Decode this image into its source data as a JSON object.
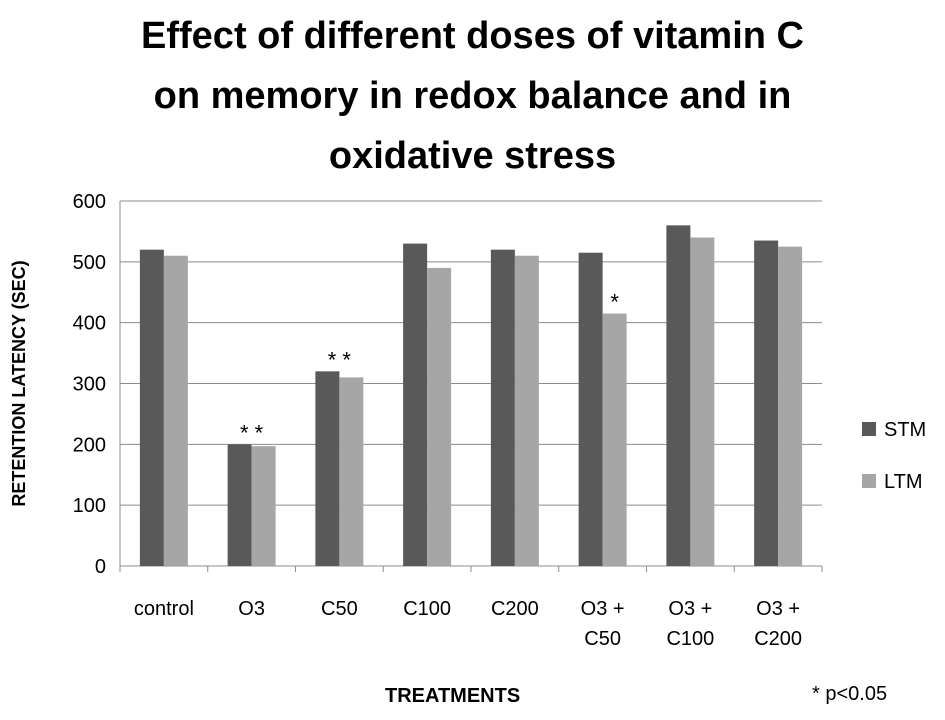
{
  "chart_data": {
    "type": "bar",
    "title_lines": [
      "Effect of different doses of vitamin C",
      "on memory in redox balance and in",
      "oxidative stress"
    ],
    "xlabel": "TREATMENTS",
    "ylabel": "RETENTION LATENCY (SEC)",
    "ylim": [
      0,
      600
    ],
    "yticks": [
      "0",
      "100",
      "200",
      "300",
      "400",
      "500",
      "600"
    ],
    "categories": [
      {
        "lines": [
          "control"
        ]
      },
      {
        "lines": [
          "O3"
        ]
      },
      {
        "lines": [
          "C50"
        ]
      },
      {
        "lines": [
          "C100"
        ]
      },
      {
        "lines": [
          "C200"
        ]
      },
      {
        "lines": [
          "O3 +",
          "C50"
        ]
      },
      {
        "lines": [
          "O3 +",
          "C100"
        ]
      },
      {
        "lines": [
          "O3 +",
          "C200"
        ]
      }
    ],
    "series": [
      {
        "name": "STM",
        "color": "#595959",
        "values": [
          520,
          200,
          320,
          530,
          520,
          515,
          560,
          535
        ]
      },
      {
        "name": "LTM",
        "color": "#a6a6a6",
        "values": [
          510,
          197,
          310,
          490,
          510,
          415,
          540,
          525
        ]
      }
    ],
    "annotations": [
      {
        "category_index": 1,
        "text": "* *"
      },
      {
        "category_index": 2,
        "text": "* *"
      },
      {
        "category_index": 5,
        "series": 1,
        "text": "*"
      }
    ],
    "legend": "right",
    "footnote": "* p<0.05",
    "grid": true
  }
}
